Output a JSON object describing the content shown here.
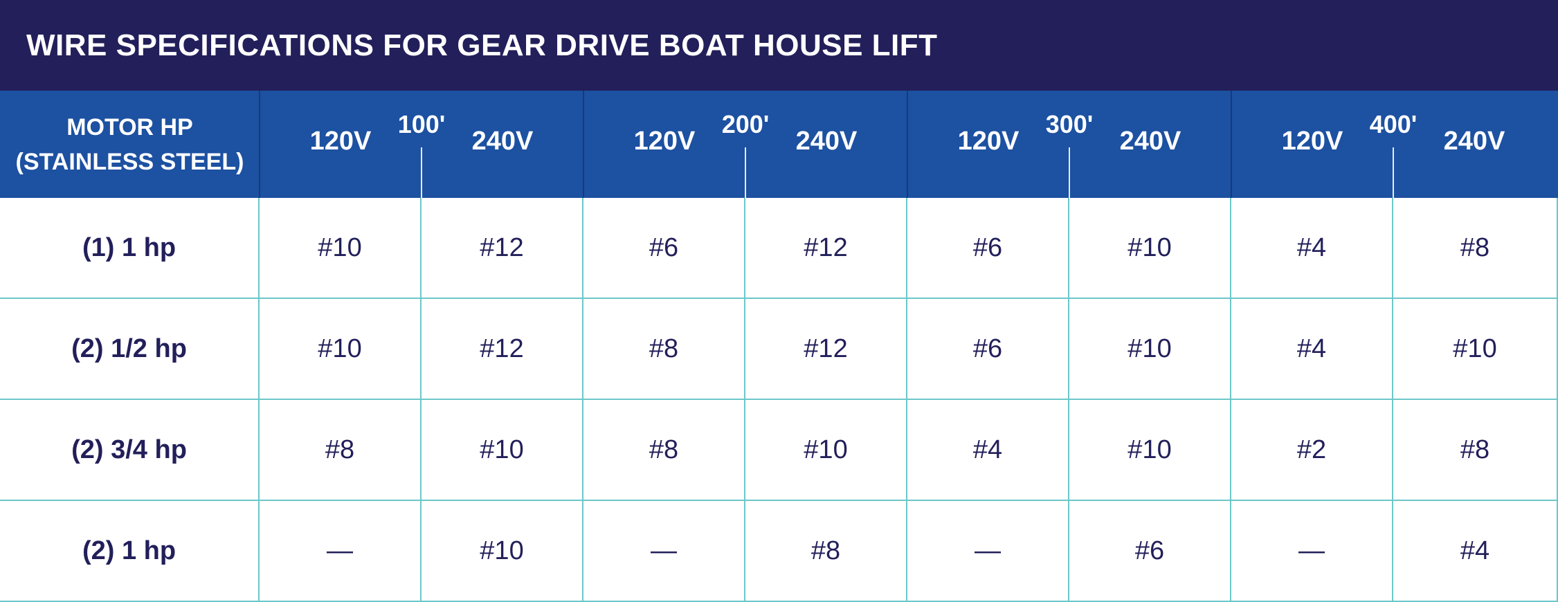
{
  "title": "WIRE SPECIFICATIONS FOR GEAR DRIVE BOAT HOUSE LIFT",
  "header": {
    "motor_line1": "MOTOR HP",
    "motor_line2": "(STAINLESS STEEL)",
    "groups": [
      {
        "distance": "100'",
        "v1": "120V",
        "v2": "240V"
      },
      {
        "distance": "200'",
        "v1": "120V",
        "v2": "240V"
      },
      {
        "distance": "300'",
        "v1": "120V",
        "v2": "240V"
      },
      {
        "distance": "400'",
        "v1": "120V",
        "v2": "240V"
      }
    ]
  },
  "rows": [
    {
      "motor": "(1) 1 hp",
      "values": [
        "#10",
        "#12",
        "#6",
        "#12",
        "#6",
        "#10",
        "#4",
        "#8"
      ]
    },
    {
      "motor": "(2) 1/2 hp",
      "values": [
        "#10",
        "#12",
        "#8",
        "#12",
        "#6",
        "#10",
        "#4",
        "#10"
      ]
    },
    {
      "motor": "(2) 3/4 hp",
      "values": [
        "#8",
        "#10",
        "#8",
        "#10",
        "#4",
        "#10",
        "#2",
        "#8"
      ]
    },
    {
      "motor": "(2) 1 hp",
      "values": [
        "—",
        "#10",
        "—",
        "#8",
        "—",
        "#6",
        "—",
        "#4"
      ]
    }
  ],
  "colors": {
    "title_bg": "#221f5a",
    "header_bg": "#1d51a1",
    "grid_line": "#6cc7c9",
    "body_text": "#221f5a"
  }
}
